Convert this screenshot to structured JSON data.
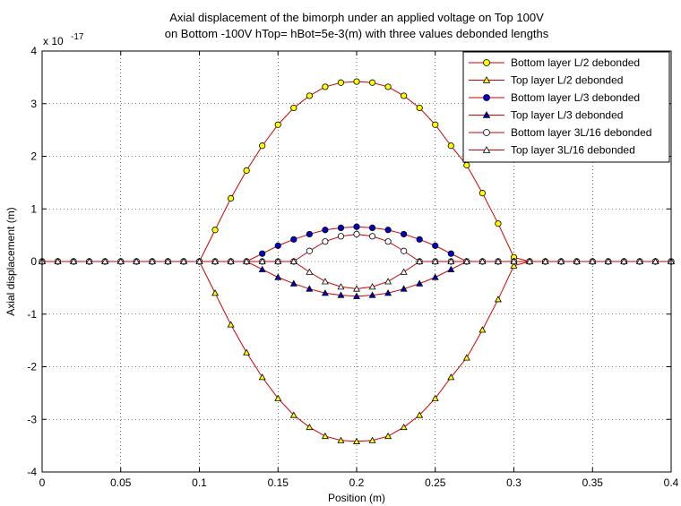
{
  "chart_data": {
    "type": "line",
    "title_line1": "Axial displacement of the bimorph under an applied voltage on Top 100V",
    "title_line2": "on Bottom -100V    hTop= hBot=5e-3(m)  with three values debonded lengths",
    "xlabel": "Position (m)",
    "ylabel": "Axial displacement (m)",
    "y_exponent_label": "x 10",
    "y_exponent": "-17",
    "xlim": [
      0,
      0.4
    ],
    "ylim": [
      -4,
      4
    ],
    "x_ticks": [
      "0",
      "0.05",
      "0.1",
      "0.15",
      "0.2",
      "0.25",
      "0.3",
      "0.35",
      "0.4"
    ],
    "y_ticks": [
      "-4",
      "-3",
      "-2",
      "-1",
      "0",
      "1",
      "2",
      "3",
      "4"
    ],
    "grid": true,
    "legend_position": "top-right",
    "line_color": "#cc0000",
    "x": [
      0,
      0.01,
      0.02,
      0.03,
      0.04,
      0.05,
      0.06,
      0.07,
      0.08,
      0.09,
      0.1,
      0.11,
      0.12,
      0.13,
      0.14,
      0.15,
      0.16,
      0.17,
      0.18,
      0.19,
      0.2,
      0.21,
      0.22,
      0.23,
      0.24,
      0.25,
      0.26,
      0.27,
      0.28,
      0.29,
      0.3,
      0.31,
      0.32,
      0.33,
      0.34,
      0.35,
      0.36,
      0.37,
      0.38,
      0.39,
      0.4
    ],
    "series": [
      {
        "name": "Bottom layer L/2 debonded",
        "marker": "circle",
        "fill": "#ffff00",
        "values": [
          0,
          0,
          0,
          0,
          0,
          0,
          0,
          0,
          0,
          0,
          0,
          0.6,
          1.2,
          1.73,
          2.2,
          2.6,
          2.92,
          3.15,
          3.32,
          3.4,
          3.42,
          3.4,
          3.32,
          3.15,
          2.92,
          2.6,
          2.2,
          1.83,
          1.3,
          0.72,
          0.08,
          0,
          0,
          0,
          0,
          0,
          0,
          0,
          0,
          0,
          0
        ]
      },
      {
        "name": "Top layer L/2 debonded",
        "marker": "triangle",
        "fill": "#ffff00",
        "values": [
          0,
          0,
          0,
          0,
          0,
          0,
          0,
          0,
          0,
          0,
          0,
          -0.6,
          -1.2,
          -1.73,
          -2.2,
          -2.6,
          -2.92,
          -3.15,
          -3.32,
          -3.4,
          -3.42,
          -3.4,
          -3.32,
          -3.15,
          -2.92,
          -2.6,
          -2.2,
          -1.83,
          -1.3,
          -0.72,
          -0.08,
          0,
          0,
          0,
          0,
          0,
          0,
          0,
          0,
          0,
          0
        ]
      },
      {
        "name": "Bottom layer L/3 debonded",
        "marker": "circle",
        "fill": "#0000cc",
        "values": [
          0,
          0,
          0,
          0,
          0,
          0,
          0,
          0,
          0,
          0,
          0,
          0,
          0,
          0,
          0.15,
          0.3,
          0.42,
          0.52,
          0.6,
          0.64,
          0.66,
          0.64,
          0.6,
          0.52,
          0.42,
          0.3,
          0.15,
          0,
          0,
          0,
          0,
          0,
          0,
          0,
          0,
          0,
          0,
          0,
          0,
          0,
          0
        ]
      },
      {
        "name": "Top layer L/3 debonded",
        "marker": "triangle",
        "fill": "#0000cc",
        "values": [
          0,
          0,
          0,
          0,
          0,
          0,
          0,
          0,
          0,
          0,
          0,
          0,
          0,
          0,
          -0.15,
          -0.3,
          -0.42,
          -0.52,
          -0.6,
          -0.64,
          -0.66,
          -0.64,
          -0.6,
          -0.52,
          -0.42,
          -0.3,
          -0.15,
          0,
          0,
          0,
          0,
          0,
          0,
          0,
          0,
          0,
          0,
          0,
          0,
          0,
          0
        ]
      },
      {
        "name": "Bottom layer 3L/16 debonded",
        "marker": "circle",
        "fill": "#ffffff",
        "values": [
          0,
          0,
          0,
          0,
          0,
          0,
          0,
          0,
          0,
          0,
          0,
          0,
          0,
          0,
          0,
          0,
          0,
          0.2,
          0.38,
          0.48,
          0.52,
          0.48,
          0.38,
          0.2,
          0,
          0,
          0,
          0,
          0,
          0,
          0,
          0,
          0,
          0,
          0,
          0,
          0,
          0,
          0,
          0,
          0
        ]
      },
      {
        "name": "Top layer 3L/16 debonded",
        "marker": "triangle",
        "fill": "#ffffff",
        "values": [
          0,
          0,
          0,
          0,
          0,
          0,
          0,
          0,
          0,
          0,
          0,
          0,
          0,
          0,
          0,
          0,
          0,
          -0.2,
          -0.38,
          -0.48,
          -0.52,
          -0.48,
          -0.38,
          -0.2,
          0,
          0,
          0,
          0,
          0,
          0,
          0,
          0,
          0,
          0,
          0,
          0,
          0,
          0,
          0,
          0,
          0
        ]
      }
    ]
  }
}
